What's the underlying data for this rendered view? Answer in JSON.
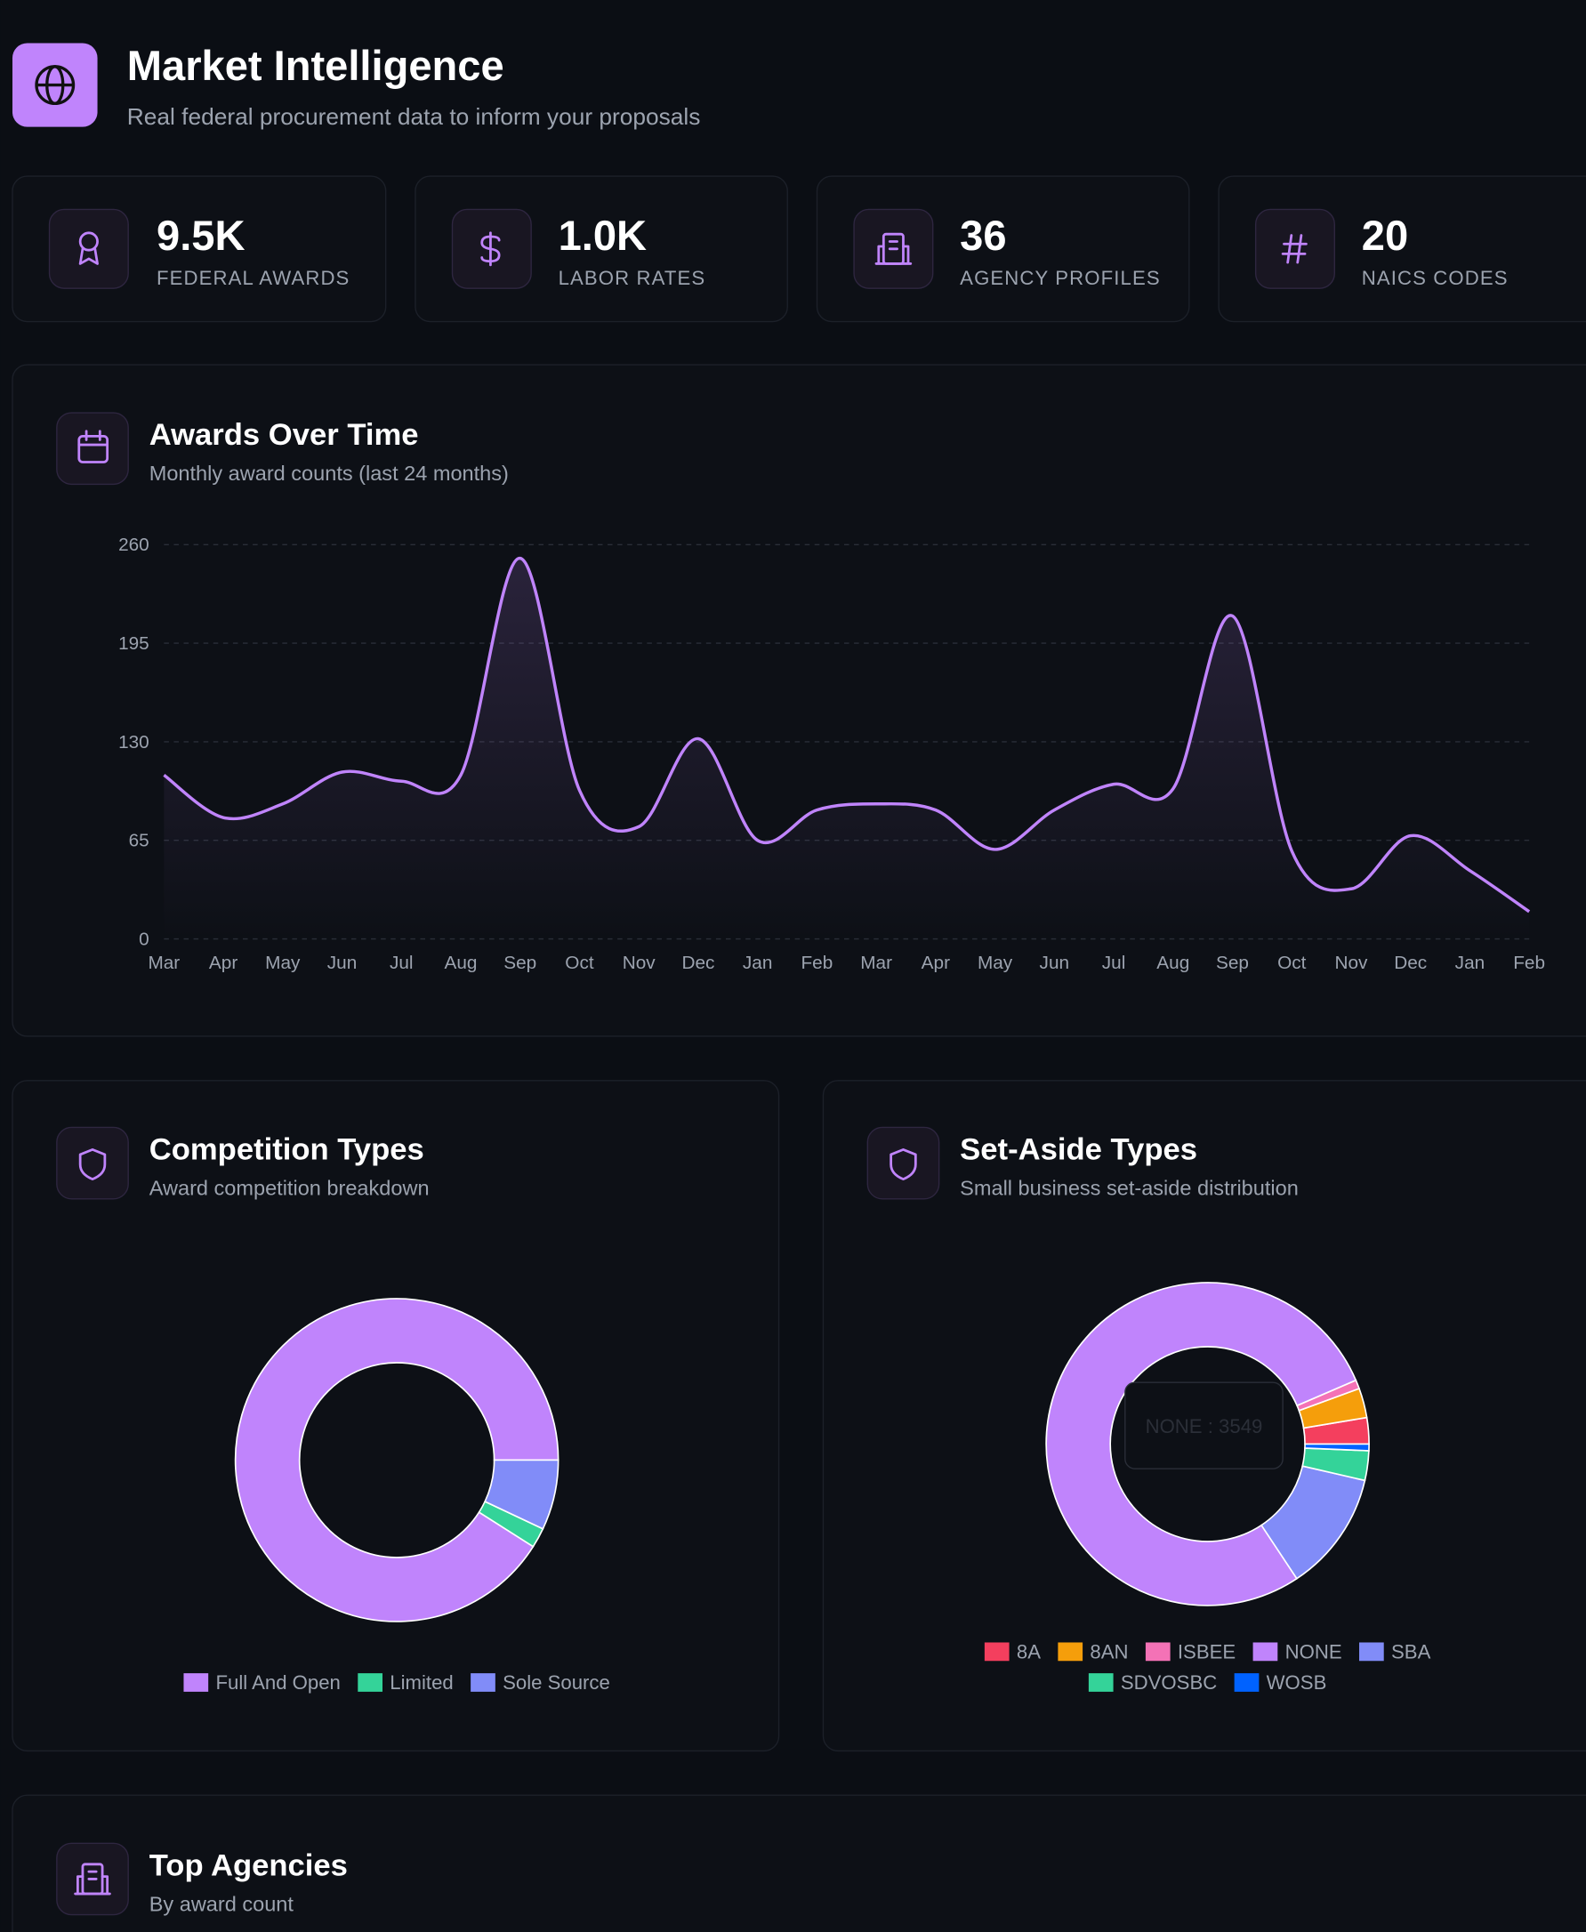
{
  "header": {
    "title": "Market Intelligence",
    "subtitle": "Real federal procurement data to inform your proposals"
  },
  "stats": [
    {
      "value": "9.5K",
      "label": "FEDERAL AWARDS"
    },
    {
      "value": "1.0K",
      "label": "LABOR RATES"
    },
    {
      "value": "36",
      "label": "AGENCY PROFILES"
    },
    {
      "value": "20",
      "label": "NAICS CODES"
    }
  ],
  "chart_data": [
    {
      "type": "line",
      "title": "Awards Over Time",
      "subtitle": "Monthly award counts (last 24 months)",
      "categories": [
        "Mar",
        "Apr",
        "May",
        "Jun",
        "Jul",
        "Aug",
        "Sep",
        "Oct",
        "Nov",
        "Dec",
        "Jan",
        "Feb",
        "Mar",
        "Apr",
        "May",
        "Jun",
        "Jul",
        "Aug",
        "Sep",
        "Oct",
        "Nov",
        "Dec",
        "Jan",
        "Feb"
      ],
      "values": [
        108,
        80,
        89,
        110,
        104,
        108,
        251,
        98,
        74,
        132,
        65,
        85,
        89,
        85,
        59,
        85,
        102,
        99,
        213,
        58,
        33,
        68,
        45,
        18
      ],
      "color": "#c084fc",
      "ylim": [
        0,
        260
      ],
      "yticks": [
        0,
        65,
        130,
        195,
        260
      ],
      "grid": true
    },
    {
      "type": "donut",
      "title": "Competition Types",
      "subtitle": "Award competition breakdown",
      "categories": [
        "Full And Open",
        "Limited",
        "Sole Source"
      ],
      "values": [
        91,
        2,
        7
      ],
      "colors": [
        "#c084fc",
        "#34d399",
        "#818cf8"
      ]
    },
    {
      "type": "donut",
      "title": "Set-Aside Types",
      "subtitle": "Small business set-aside distribution",
      "categories": [
        "8A",
        "8AN",
        "ISBEE",
        "NONE",
        "SBA",
        "SDVOSBC",
        "WOSB"
      ],
      "values": [
        120,
        135,
        40,
        3549,
        550,
        135,
        30
      ],
      "colors": [
        "#f43f5e",
        "#f59e0b",
        "#f472b6",
        "#c084fc",
        "#818cf8",
        "#34d399",
        "#0062ff"
      ],
      "tooltip": "NONE : 3549"
    }
  ],
  "sections": [
    {
      "title": "Top Agencies",
      "subtitle": "By award count"
    }
  ]
}
